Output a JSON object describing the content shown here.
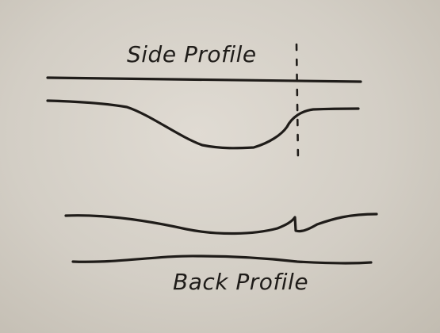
{
  "labels": {
    "side_profile": "Side Profile",
    "back_profile": "Back Profile"
  },
  "colors": {
    "ink": "#1f1c19",
    "board": "#d8d3ca"
  }
}
